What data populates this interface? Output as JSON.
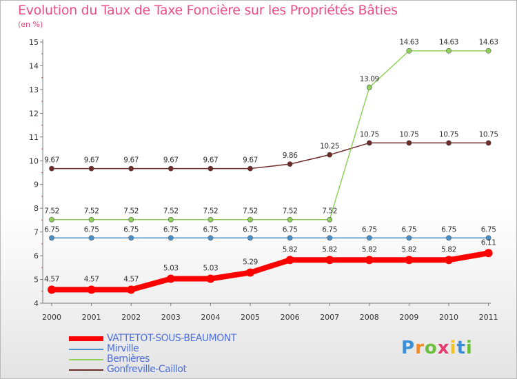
{
  "title": "Evolution du Taux de Taxe Foncière sur les Propriétés Bâties",
  "unit": "(en %)",
  "logo": {
    "letters": [
      "P",
      "r",
      "o",
      "x",
      "i",
      "t",
      "i"
    ],
    "colors": [
      "#3a8fd8",
      "#f0892a",
      "#6bbf3a",
      "#e33c6e",
      "#f2c21e",
      "#3a8fd8",
      "#6bbf3a"
    ]
  },
  "chart_data": {
    "type": "line",
    "title": "Evolution du Taux de Taxe Foncière sur les Propriétés Bâties",
    "ylabel": "(en %)",
    "xlabel": "",
    "x": [
      "2000",
      "2001",
      "2002",
      "2003",
      "2004",
      "2005",
      "2006",
      "2007",
      "2008",
      "2009",
      "2010",
      "2011"
    ],
    "ylim": [
      4,
      15
    ],
    "yticks": [
      "4",
      "5",
      "6",
      "7",
      "8",
      "9",
      "10",
      "11",
      "12",
      "13",
      "14",
      "15"
    ],
    "legend_position": "bottom-left",
    "series": [
      {
        "name": "VATTETOT-SOUS-BEAUMONT",
        "color": "#ff0000",
        "values": [
          4.57,
          4.57,
          4.57,
          5.03,
          5.03,
          5.29,
          5.82,
          5.82,
          5.82,
          5.82,
          5.82,
          6.11
        ],
        "labels": [
          "4.57",
          "4.57",
          "4.57",
          "5.03",
          "5.03",
          "5.29",
          "5.82",
          "5.82",
          "5.82",
          "5.82",
          "5.82",
          "6.11"
        ]
      },
      {
        "name": "Mirville",
        "color": "#4a90c8",
        "values": [
          6.75,
          6.75,
          6.75,
          6.75,
          6.75,
          6.75,
          6.75,
          6.75,
          6.75,
          6.75,
          6.75,
          6.75
        ],
        "labels": [
          "6.75",
          "6.75",
          "6.75",
          "6.75",
          "6.75",
          "6.75",
          "6.75",
          "6.75",
          "6.75",
          "6.75",
          "6.75",
          "6.75"
        ]
      },
      {
        "name": "Bernières",
        "color": "#8fd25a",
        "values": [
          7.52,
          7.52,
          7.52,
          7.52,
          7.52,
          7.52,
          7.52,
          7.52,
          13.09,
          14.63,
          14.63,
          14.63
        ],
        "labels": [
          "7.52",
          "7.52",
          "7.52",
          "7.52",
          "7.52",
          "7.52",
          "7.52",
          "7.52",
          "13.09",
          "14.63",
          "14.63",
          "14.63"
        ]
      },
      {
        "name": "Gonfreville-Caillot",
        "color": "#6e2a2a",
        "values": [
          9.67,
          9.67,
          9.67,
          9.67,
          9.67,
          9.67,
          9.86,
          10.25,
          10.75,
          10.75,
          10.75,
          10.75
        ],
        "labels": [
          "9.67",
          "9.67",
          "9.67",
          "9.67",
          "9.67",
          "9.67",
          "9.86",
          "10.25",
          "10.75",
          "10.75",
          "10.75",
          "10.75"
        ]
      }
    ]
  }
}
